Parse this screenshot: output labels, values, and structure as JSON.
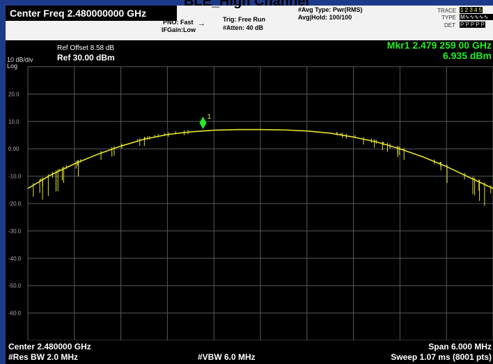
{
  "page_title": "BLE_High Channel",
  "header": {
    "center_freq": "Center Freq  2.480000000 GHz",
    "pno": "PNO: Fast",
    "ifgain": "IFGain:Low",
    "trig": "Trig: Free Run",
    "atten": "#Atten: 40 dB",
    "avg_type": "#Avg Type: Pwr(RMS)",
    "avg_hold": "Avg|Hold: 100/100",
    "trace_label": "TRACE",
    "trace_numbers": "1 2 3 4 5",
    "type_label": "TYPE",
    "type_value": "M",
    "det_label": "DET",
    "det_value": "P P P P P"
  },
  "display": {
    "ref_offset": "Ref Offset 8.58 dB",
    "ref_level": "Ref 30.00 dBm",
    "scale": "10 dB/div",
    "scale_type": "Log",
    "marker_freq": "Mkr1 2.479 259 00 GHz",
    "marker_amp": "6.935 dBm",
    "marker_label": "1"
  },
  "footer": {
    "center": "Center 2.480000 GHz",
    "span": "Span 6.000 MHz",
    "rbw": "#Res BW 2.0 MHz",
    "vbw": "#VBW 6.0 MHz",
    "sweep": "Sweep  1.07 ms (8001 pts)"
  },
  "colors": {
    "trace": "#e6e62e",
    "marker": "#22ee22",
    "grid": "#5a5a5a",
    "background": "#000000"
  },
  "chart_data": {
    "type": "line",
    "title": "",
    "xlabel": "",
    "ylabel": "",
    "xlim": [
      2.477,
      2.483
    ],
    "ylim": [
      -70,
      30
    ],
    "ytick_labels": [
      "20.0",
      "10.0",
      "0.00",
      "-10.0",
      "-20.0",
      "-30.0",
      "-40.0",
      "-50.0",
      "-60.0"
    ],
    "yticks": [
      20,
      10,
      0,
      -10,
      -20,
      -30,
      -40,
      -50,
      -60
    ],
    "grid": true,
    "series": [
      {
        "x": [
          2.477,
          2.4773,
          2.4776,
          2.4779,
          2.4782,
          2.4785,
          2.4788,
          2.4791,
          2.4794,
          2.4797,
          2.48,
          2.4803,
          2.4806,
          2.4809,
          2.4812,
          2.4815,
          2.4818,
          2.4821,
          2.4824,
          2.4827,
          2.483
        ],
        "y": [
          -14.5,
          -9.5,
          -5.5,
          -2.0,
          1.0,
          3.5,
          5.2,
          6.2,
          6.8,
          7.0,
          7.0,
          6.9,
          6.5,
          5.7,
          4.3,
          2.5,
          0.0,
          -3.0,
          -6.5,
          -10.5,
          -14.5
        ]
      }
    ],
    "marker": {
      "x": 2.479259,
      "y": 6.935,
      "label": "1"
    }
  }
}
